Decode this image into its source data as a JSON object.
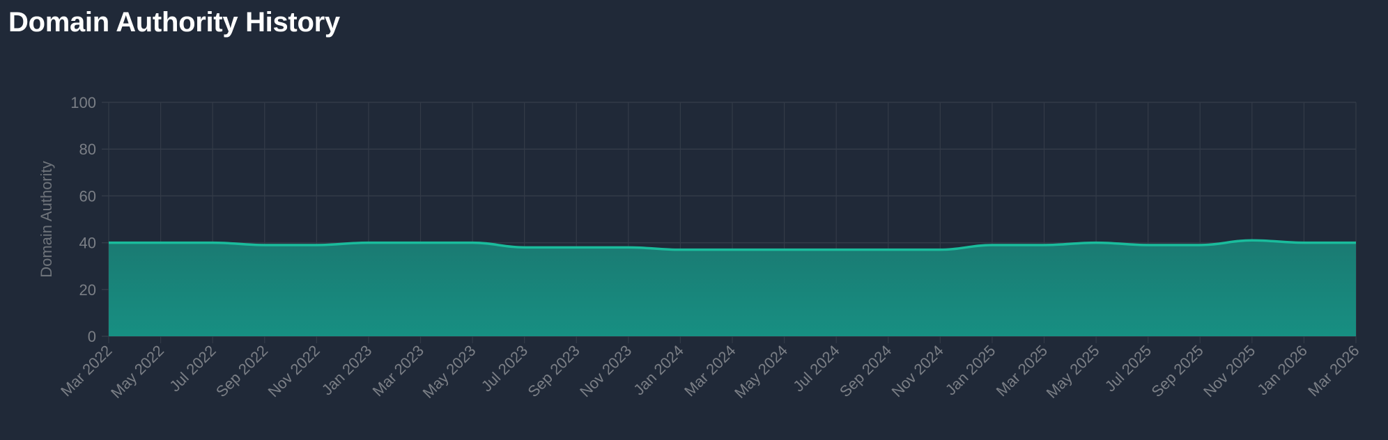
{
  "page": {
    "title": "Domain Authority History"
  },
  "colors": {
    "background": "#202938",
    "grid": "#333b48",
    "line": "#1abc9c",
    "fill_top": "#1a7a72",
    "fill_bottom": "#178f82",
    "tick_text": "#7b7f86"
  },
  "chart_data": {
    "type": "area",
    "title": "Domain Authority History",
    "xlabel": "",
    "ylabel": "Domain Authority",
    "ylim": [
      0,
      100
    ],
    "yticks": [
      0,
      20,
      40,
      60,
      80,
      100
    ],
    "grid": true,
    "legend": null,
    "categories": [
      "Mar 2022",
      "May 2022",
      "Jul 2022",
      "Sep 2022",
      "Nov 2022",
      "Jan 2023",
      "Mar 2023",
      "May 2023",
      "Jul 2023",
      "Sep 2023",
      "Nov 2023",
      "Jan 2024",
      "Mar 2024",
      "May 2024",
      "Jul 2024",
      "Sep 2024",
      "Nov 2024",
      "Jan 2025",
      "Mar 2025",
      "May 2025",
      "Jul 2025",
      "Sep 2025",
      "Nov 2025",
      "Jan 2026",
      "Mar 2026"
    ],
    "series": [
      {
        "name": "Domain Authority",
        "values": [
          40,
          40,
          40,
          39,
          39,
          40,
          40,
          40,
          38,
          38,
          38,
          37,
          37,
          37,
          37,
          37,
          37,
          39,
          39,
          40,
          39,
          39,
          41,
          40,
          40
        ]
      }
    ]
  }
}
